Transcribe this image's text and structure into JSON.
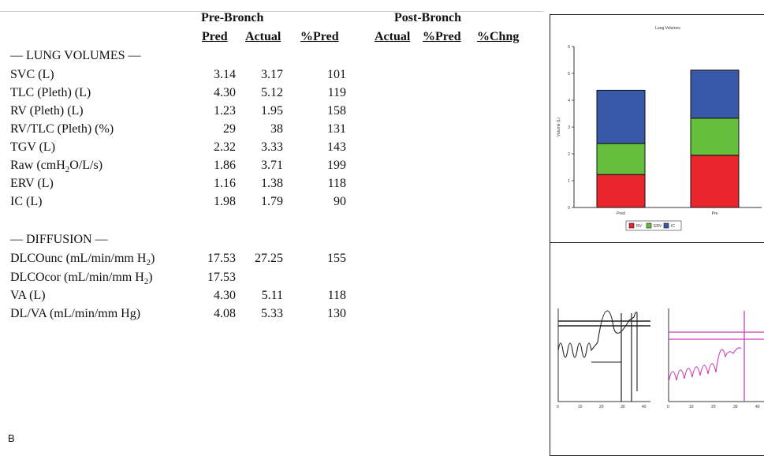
{
  "header": {
    "pre_group": "Pre-Bronch",
    "post_group": "Post-Bronch",
    "columns": [
      "Pred",
      "Actual",
      "%Pred",
      "Actual",
      "%Pred",
      "%Chng"
    ]
  },
  "sections": {
    "lung_volumes": "— LUNG VOLUMES —",
    "diffusion": "— DIFFUSION —"
  },
  "rows": [
    {
      "label": "SVC (L)",
      "pred": "3.14",
      "actual": "3.17",
      "pct_pred": "101"
    },
    {
      "label": "TLC (Pleth) (L)",
      "pred": "4.30",
      "actual": "5.12",
      "pct_pred": "119"
    },
    {
      "label": "RV (Pleth) (L)",
      "pred": "1.23",
      "actual": "1.95",
      "pct_pred": "158"
    },
    {
      "label": "RV/TLC (Pleth) (%)",
      "pred": "29",
      "actual": "38",
      "pct_pred": "131"
    },
    {
      "label": "TGV (L)",
      "pred": "2.32",
      "actual": "3.33",
      "pct_pred": "143"
    },
    {
      "label_pre": "Raw (cmH",
      "label_sub": "2",
      "label_post": "O/L/s)",
      "pred": "1.86",
      "actual": "3.71",
      "pct_pred": "199"
    },
    {
      "label": "ERV (L)",
      "pred": "1.16",
      "actual": "1.38",
      "pct_pred": "118"
    },
    {
      "label": "IC (L)",
      "pred": "1.98",
      "actual": "1.79",
      "pct_pred": "90"
    },
    {
      "label_pre": "DLCOunc (mL/min/mm H",
      "label_sub": "2",
      "label_post": ")",
      "pred": "17.53",
      "actual": "27.25",
      "pct_pred": "155"
    },
    {
      "label_pre": "DLCOcor (mL/min/mm H",
      "label_sub": "2",
      "label_post": ")",
      "pred": "17.53",
      "actual": "",
      "pct_pred": ""
    },
    {
      "label": "VA (L)",
      "pred": "4.30",
      "actual": "5.11",
      "pct_pred": "118"
    },
    {
      "label": "DL/VA (mL/min/mm Hg)",
      "pred": "4.08",
      "actual": "5.33",
      "pct_pred": "130"
    }
  ],
  "figure_label": "B",
  "chart_data": {
    "type": "bar",
    "stacked": true,
    "title": "Lung Volumes",
    "ylabel": "Volume (L)",
    "categories": [
      "Pred",
      "Pre"
    ],
    "ylim": [
      0,
      6
    ],
    "yticks": [
      "0",
      "1",
      "2",
      "3",
      "4",
      "5",
      "6"
    ],
    "series": [
      {
        "name": "RV",
        "color": "#e8262b",
        "values": [
          1.23,
          1.95
        ]
      },
      {
        "name": "ERV",
        "color": "#66bf3c",
        "values": [
          1.16,
          1.38
        ]
      },
      {
        "name": "IC",
        "color": "#3a58a8",
        "values": [
          1.98,
          1.79
        ]
      }
    ],
    "legend_position": "bottom"
  },
  "traces": {
    "left_color": "#222222",
    "right_color": "#c83fb8",
    "x_ticks": [
      "0",
      "10",
      "20",
      "30",
      "40"
    ]
  }
}
